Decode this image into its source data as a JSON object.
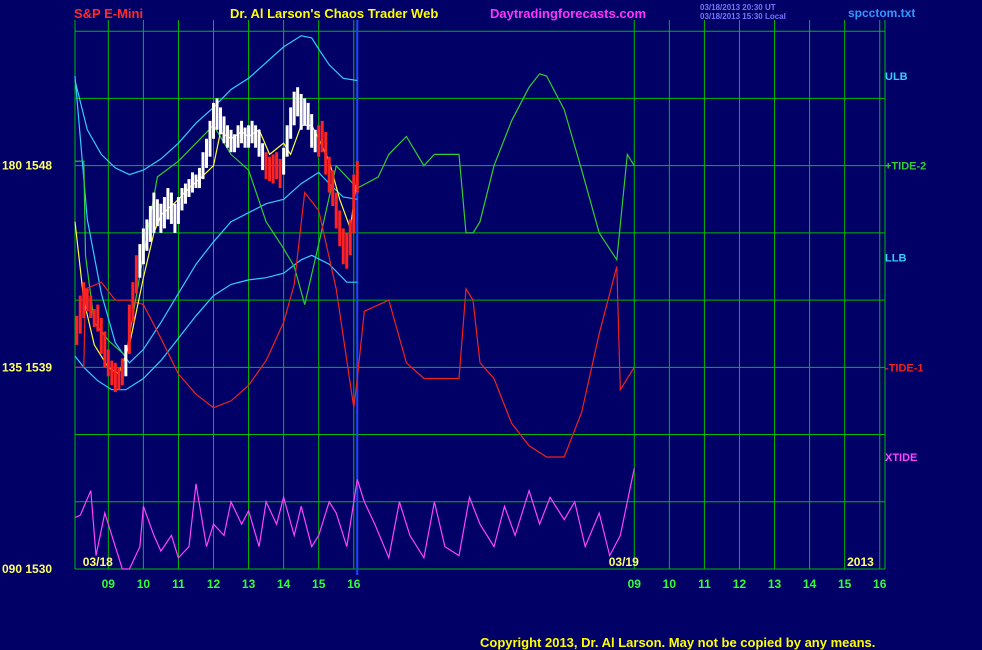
{
  "header": {
    "symbol": "S&P E-Mini",
    "title": "Dr. Al Larson's Chaos Trader Web",
    "website": "Daytradingforecasts.com",
    "timestamp_line1": "03/18/2013 20:30 UT",
    "timestamp_line2": "03/18/2013 15:30 Local",
    "filename": "spcctom.txt"
  },
  "copyright": "Copyright 2013, Dr. Al Larson. May not be copied by any means.",
  "colors": {
    "background": "#000066",
    "grid": "#00bb00",
    "symbol": "#ff2a2a",
    "title": "#ffff00",
    "website": "#ff33ff",
    "timestamp": "#7777ff",
    "filename": "#3399ff",
    "band": "#33ccff",
    "tide2": "#33cc33",
    "tide1": "#ee2222",
    "xtide": "#ff44ff",
    "yline": "#ffff33",
    "candle_up": "#ffffff",
    "candle_down": "#ff2222",
    "axis_text": "#ffff66",
    "x_ticks": "#33ff33",
    "divider": "#2244ff"
  },
  "chart_data": {
    "type": "line",
    "ylim": [
      1530,
      1554.5
    ],
    "xlim": [
      8.05,
      8.17
    ],
    "y_tick_labels": [
      {
        "label": "180  1548",
        "value": 1548
      },
      {
        "label": "135  1539",
        "value": 1539
      },
      {
        "label": "090  1530",
        "value": 1530
      }
    ],
    "x_ticks": {
      "labels": [
        "09",
        "10",
        "11",
        "12",
        "13",
        "14",
        "15",
        "16",
        "09",
        "10",
        "11",
        "12",
        "13",
        "14",
        "15",
        "16"
      ],
      "values": [
        9,
        10,
        11,
        12,
        13,
        14,
        15,
        16,
        24,
        25,
        26,
        27,
        28,
        29,
        30,
        31
      ],
      "range": [
        8.05,
        31.15
      ]
    },
    "date_labels": [
      {
        "label": "03/18",
        "x": 8.7
      },
      {
        "label": "03/19",
        "x": 23.7
      },
      {
        "label": "2013",
        "x": 30.45
      }
    ],
    "divider_x": 16.1,
    "series_labels": [
      {
        "label": "ULB",
        "y": 1552.0,
        "key": "band"
      },
      {
        "label": "+TIDE-2",
        "y": 1548.0,
        "key": "tide2"
      },
      {
        "label": "LLB",
        "y": 1543.9,
        "key": "band"
      },
      {
        "label": "-TIDE-1",
        "y": 1539.0,
        "key": "tide1"
      },
      {
        "label": "XTIDE",
        "y": 1535.0,
        "key": "xtide"
      }
    ],
    "series": [
      {
        "name": "ULB",
        "key": "band",
        "x": [
          8.05,
          8.4,
          8.8,
          9.2,
          9.6,
          10.0,
          10.5,
          11.0,
          11.5,
          12.0,
          12.5,
          13.0,
          13.5,
          14.0,
          14.5,
          14.8,
          15.0,
          15.3,
          15.7,
          16.1
        ],
        "y": [
          1551.8,
          1549.6,
          1548.5,
          1547.9,
          1547.6,
          1547.8,
          1548.3,
          1549.0,
          1549.9,
          1550.6,
          1551.4,
          1551.9,
          1552.6,
          1553.3,
          1553.8,
          1553.7,
          1553.2,
          1552.5,
          1551.9,
          1551.8
        ]
      },
      {
        "name": "MLB",
        "key": "band",
        "x": [
          8.05,
          8.4,
          8.8,
          9.2,
          9.6,
          10.0,
          10.5,
          11.0,
          11.5,
          12.0,
          12.5,
          13.0,
          13.5,
          14.0,
          14.5,
          15.0,
          15.3,
          15.7,
          16.1
        ],
        "y": [
          1552.0,
          1545.6,
          1542.3,
          1540.1,
          1539.2,
          1539.8,
          1541.0,
          1542.3,
          1543.6,
          1544.6,
          1545.5,
          1545.9,
          1546.3,
          1546.5,
          1547.2,
          1547.7,
          1547.2,
          1546.6,
          1546.5
        ]
      },
      {
        "name": "LLB",
        "key": "band",
        "x": [
          8.05,
          8.3,
          8.7,
          9.1,
          9.5,
          10.0,
          10.5,
          11.0,
          11.5,
          12.0,
          12.5,
          13.0,
          13.5,
          14.0,
          14.5,
          14.8,
          15.3,
          15.8,
          16.1
        ],
        "y": [
          1539.5,
          1539.0,
          1538.4,
          1538.0,
          1538.0,
          1538.5,
          1539.3,
          1540.3,
          1541.3,
          1542.2,
          1542.7,
          1542.9,
          1543.0,
          1543.2,
          1543.8,
          1544.0,
          1543.6,
          1542.8,
          1542.8
        ]
      },
      {
        "name": "+TIDE-2",
        "key": "tide2",
        "x": [
          8.05,
          8.3,
          8.35,
          8.6,
          9.0,
          9.5,
          10.0,
          10.4,
          11.0,
          11.5,
          12.0,
          12.5,
          13.0,
          13.5,
          14.0,
          14.3,
          14.6,
          15.0,
          15.5,
          16.1,
          16.7,
          17.0,
          17.5,
          18.0,
          18.3,
          18.6,
          19.0,
          19.2,
          19.4,
          19.6,
          20.0,
          20.5,
          21.0,
          21.3,
          21.5,
          22.0,
          22.5,
          23.0,
          23.5,
          23.8,
          24.0
        ],
        "y": [
          1548.2,
          1548.2,
          1544.0,
          1541.0,
          1540.2,
          1539.5,
          1544.0,
          1547.5,
          1548.2,
          1549.0,
          1549.8,
          1548.5,
          1547.8,
          1545.5,
          1544.3,
          1543.5,
          1541.8,
          1544.5,
          1548.0,
          1547.0,
          1547.5,
          1548.5,
          1549.3,
          1548.0,
          1548.5,
          1548.5,
          1548.5,
          1545.0,
          1545.0,
          1545.5,
          1548.0,
          1550.0,
          1551.5,
          1552.1,
          1552.0,
          1550.5,
          1547.8,
          1545.0,
          1543.8,
          1548.5,
          1548.0
        ]
      },
      {
        "name": "-TIDE-1",
        "key": "tide1",
        "x": [
          8.05,
          8.3,
          8.35,
          8.8,
          9.2,
          9.6,
          10.0,
          10.5,
          11.0,
          11.5,
          12.0,
          12.5,
          13.0,
          13.5,
          14.0,
          14.3,
          14.6,
          15.0,
          15.5,
          16.0,
          16.1,
          16.3,
          17.0,
          17.5,
          18.0,
          18.5,
          19.0,
          19.2,
          19.4,
          19.6,
          20.0,
          20.5,
          21.0,
          21.5,
          22.0,
          22.5,
          23.0,
          23.5,
          23.6,
          24.0
        ],
        "y": [
          1539.0,
          1539.0,
          1542.5,
          1542.8,
          1542.0,
          1542.0,
          1541.8,
          1540.3,
          1538.7,
          1537.8,
          1537.2,
          1537.5,
          1538.2,
          1539.3,
          1541.0,
          1542.7,
          1546.8,
          1546.0,
          1542.5,
          1537.2,
          1538.5,
          1541.5,
          1542.0,
          1539.2,
          1538.5,
          1538.5,
          1538.5,
          1542.5,
          1542.0,
          1539.2,
          1538.5,
          1536.5,
          1535.5,
          1535.0,
          1535.0,
          1537.0,
          1540.5,
          1543.5,
          1538.0,
          1539.0
        ]
      },
      {
        "name": "XTIDE",
        "key": "xtide",
        "x": [
          8.05,
          8.2,
          8.5,
          8.65,
          8.9,
          9.2,
          9.4,
          9.6,
          9.9,
          10.0,
          10.3,
          10.5,
          10.8,
          11.0,
          11.3,
          11.5,
          11.8,
          12.0,
          12.3,
          12.5,
          12.8,
          13.0,
          13.3,
          13.5,
          13.8,
          14.0,
          14.3,
          14.5,
          14.8,
          15.0,
          15.3,
          15.5,
          15.8,
          16.1,
          16.3,
          16.6,
          17.0,
          17.3,
          17.6,
          18.0,
          18.3,
          18.6,
          19.0,
          19.3,
          19.6,
          20.0,
          20.3,
          20.6,
          21.0,
          21.3,
          21.6,
          22.0,
          22.3,
          22.6,
          23.0,
          23.3,
          23.6,
          24.0
        ],
        "y": [
          1532.3,
          1532.4,
          1533.5,
          1530.6,
          1532.5,
          1531.0,
          1530.0,
          1530.0,
          1531.0,
          1532.8,
          1531.5,
          1530.8,
          1531.5,
          1530.5,
          1531.0,
          1533.8,
          1531.0,
          1532.0,
          1531.5,
          1533.0,
          1532.0,
          1532.6,
          1531.0,
          1533.0,
          1532.0,
          1533.2,
          1531.5,
          1532.8,
          1531.0,
          1531.5,
          1533.0,
          1532.5,
          1531.0,
          1534.0,
          1533.0,
          1532.0,
          1530.5,
          1533.0,
          1531.5,
          1530.5,
          1533.0,
          1531.0,
          1530.6,
          1533.2,
          1532.0,
          1531.0,
          1532.8,
          1531.5,
          1533.5,
          1532.0,
          1533.2,
          1532.2,
          1533.0,
          1531.0,
          1532.5,
          1530.6,
          1531.5,
          1534.5
        ]
      },
      {
        "name": "",
        "key": "yline",
        "x": [
          8.05,
          8.3,
          8.6,
          9.0,
          9.3,
          9.6,
          10.0,
          10.3,
          10.5,
          10.8,
          11.0,
          11.3,
          11.6,
          12.0,
          12.2,
          12.5,
          12.8,
          13.0,
          13.3,
          13.6,
          14.0,
          14.2,
          14.5,
          14.8,
          15.0,
          15.3,
          15.6,
          15.9,
          16.1
        ],
        "y": [
          1545.5,
          1542.0,
          1540.0,
          1539.0,
          1538.7,
          1540.0,
          1543.0,
          1545.0,
          1545.8,
          1546.2,
          1546.5,
          1547.0,
          1547.4,
          1548.0,
          1549.5,
          1549.2,
          1549.5,
          1549.3,
          1549.6,
          1548.5,
          1549.0,
          1548.5,
          1549.8,
          1549.8,
          1549.2,
          1548.2,
          1546.5,
          1545.2,
          1547.5
        ]
      }
    ],
    "price_bars": [
      {
        "x": 8.1,
        "h": 1541.3,
        "l": 1540.0,
        "dir": "down"
      },
      {
        "x": 8.2,
        "h": 1542.2,
        "l": 1540.5,
        "dir": "down"
      },
      {
        "x": 8.3,
        "h": 1542.8,
        "l": 1541.2,
        "dir": "down"
      },
      {
        "x": 8.4,
        "h": 1542.5,
        "l": 1541.5,
        "dir": "down"
      },
      {
        "x": 8.5,
        "h": 1542.2,
        "l": 1541.2,
        "dir": "down"
      },
      {
        "x": 8.6,
        "h": 1541.6,
        "l": 1540.8,
        "dir": "down"
      },
      {
        "x": 8.7,
        "h": 1541.8,
        "l": 1540.6,
        "dir": "down"
      },
      {
        "x": 8.8,
        "h": 1541.2,
        "l": 1539.6,
        "dir": "down"
      },
      {
        "x": 8.9,
        "h": 1540.6,
        "l": 1539.0,
        "dir": "down"
      },
      {
        "x": 9.0,
        "h": 1539.8,
        "l": 1538.6,
        "dir": "down"
      },
      {
        "x": 9.1,
        "h": 1539.3,
        "l": 1538.2,
        "dir": "down"
      },
      {
        "x": 9.2,
        "h": 1539.2,
        "l": 1537.9,
        "dir": "down"
      },
      {
        "x": 9.3,
        "h": 1539.0,
        "l": 1538.0,
        "dir": "down"
      },
      {
        "x": 9.4,
        "h": 1539.4,
        "l": 1538.2,
        "dir": "down"
      },
      {
        "x": 9.5,
        "h": 1540.0,
        "l": 1538.6,
        "dir": "up"
      },
      {
        "x": 9.6,
        "h": 1541.8,
        "l": 1539.6,
        "dir": "down"
      },
      {
        "x": 9.7,
        "h": 1542.8,
        "l": 1541.0,
        "dir": "down"
      },
      {
        "x": 9.8,
        "h": 1544.0,
        "l": 1542.3,
        "dir": "down"
      },
      {
        "x": 9.9,
        "h": 1544.5,
        "l": 1543.0,
        "dir": "up"
      },
      {
        "x": 10.0,
        "h": 1545.2,
        "l": 1543.6,
        "dir": "up"
      },
      {
        "x": 10.1,
        "h": 1545.6,
        "l": 1544.2,
        "dir": "up"
      },
      {
        "x": 10.2,
        "h": 1546.2,
        "l": 1544.6,
        "dir": "up"
      },
      {
        "x": 10.3,
        "h": 1546.8,
        "l": 1545.0,
        "dir": "up"
      },
      {
        "x": 10.4,
        "h": 1546.5,
        "l": 1545.3,
        "dir": "up"
      },
      {
        "x": 10.5,
        "h": 1546.3,
        "l": 1545.0,
        "dir": "up"
      },
      {
        "x": 10.6,
        "h": 1546.6,
        "l": 1545.2,
        "dir": "up"
      },
      {
        "x": 10.7,
        "h": 1547.0,
        "l": 1545.6,
        "dir": "up"
      },
      {
        "x": 10.8,
        "h": 1546.8,
        "l": 1545.4,
        "dir": "up"
      },
      {
        "x": 10.9,
        "h": 1546.3,
        "l": 1545.0,
        "dir": "up"
      },
      {
        "x": 11.0,
        "h": 1546.6,
        "l": 1545.4,
        "dir": "up"
      },
      {
        "x": 11.1,
        "h": 1547.0,
        "l": 1546.0,
        "dir": "up"
      },
      {
        "x": 11.2,
        "h": 1547.2,
        "l": 1546.3,
        "dir": "up"
      },
      {
        "x": 11.3,
        "h": 1547.4,
        "l": 1546.6,
        "dir": "up"
      },
      {
        "x": 11.4,
        "h": 1547.7,
        "l": 1546.8,
        "dir": "up"
      },
      {
        "x": 11.5,
        "h": 1547.6,
        "l": 1547.0,
        "dir": "up"
      },
      {
        "x": 11.6,
        "h": 1547.9,
        "l": 1547.0,
        "dir": "up"
      },
      {
        "x": 11.7,
        "h": 1548.6,
        "l": 1547.4,
        "dir": "up"
      },
      {
        "x": 11.8,
        "h": 1549.2,
        "l": 1547.9,
        "dir": "up"
      },
      {
        "x": 11.9,
        "h": 1550.0,
        "l": 1548.4,
        "dir": "up"
      },
      {
        "x": 12.0,
        "h": 1550.8,
        "l": 1549.2,
        "dir": "up"
      },
      {
        "x": 12.1,
        "h": 1551.0,
        "l": 1549.6,
        "dir": "up"
      },
      {
        "x": 12.2,
        "h": 1550.6,
        "l": 1549.4,
        "dir": "up"
      },
      {
        "x": 12.3,
        "h": 1550.2,
        "l": 1549.0,
        "dir": "up"
      },
      {
        "x": 12.4,
        "h": 1549.8,
        "l": 1548.8,
        "dir": "up"
      },
      {
        "x": 12.5,
        "h": 1549.6,
        "l": 1548.6,
        "dir": "up"
      },
      {
        "x": 12.6,
        "h": 1549.4,
        "l": 1548.6,
        "dir": "up"
      },
      {
        "x": 12.7,
        "h": 1549.8,
        "l": 1548.8,
        "dir": "up"
      },
      {
        "x": 12.8,
        "h": 1550.0,
        "l": 1549.0,
        "dir": "up"
      },
      {
        "x": 12.9,
        "h": 1549.7,
        "l": 1548.8,
        "dir": "up"
      },
      {
        "x": 13.0,
        "h": 1549.8,
        "l": 1548.8,
        "dir": "up"
      },
      {
        "x": 13.1,
        "h": 1550.0,
        "l": 1549.0,
        "dir": "up"
      },
      {
        "x": 13.2,
        "h": 1549.8,
        "l": 1548.8,
        "dir": "up"
      },
      {
        "x": 13.3,
        "h": 1549.6,
        "l": 1548.4,
        "dir": "up"
      },
      {
        "x": 13.4,
        "h": 1549.0,
        "l": 1547.8,
        "dir": "up"
      },
      {
        "x": 13.5,
        "h": 1548.6,
        "l": 1547.4,
        "dir": "down"
      },
      {
        "x": 13.6,
        "h": 1548.4,
        "l": 1547.3,
        "dir": "down"
      },
      {
        "x": 13.7,
        "h": 1548.5,
        "l": 1547.2,
        "dir": "down"
      },
      {
        "x": 13.8,
        "h": 1548.6,
        "l": 1547.4,
        "dir": "down"
      },
      {
        "x": 13.9,
        "h": 1548.3,
        "l": 1547.0,
        "dir": "down"
      },
      {
        "x": 14.0,
        "h": 1548.8,
        "l": 1547.6,
        "dir": "up"
      },
      {
        "x": 14.1,
        "h": 1549.8,
        "l": 1548.4,
        "dir": "up"
      },
      {
        "x": 14.2,
        "h": 1550.6,
        "l": 1549.2,
        "dir": "up"
      },
      {
        "x": 14.3,
        "h": 1551.3,
        "l": 1549.8,
        "dir": "up"
      },
      {
        "x": 14.4,
        "h": 1551.5,
        "l": 1550.2,
        "dir": "up"
      },
      {
        "x": 14.5,
        "h": 1551.2,
        "l": 1549.6,
        "dir": "up"
      },
      {
        "x": 14.6,
        "h": 1551.0,
        "l": 1549.8,
        "dir": "up"
      },
      {
        "x": 14.7,
        "h": 1550.8,
        "l": 1549.6,
        "dir": "up"
      },
      {
        "x": 14.8,
        "h": 1550.3,
        "l": 1548.8,
        "dir": "up"
      },
      {
        "x": 14.9,
        "h": 1549.6,
        "l": 1548.6,
        "dir": "up"
      },
      {
        "x": 15.0,
        "h": 1549.8,
        "l": 1548.4,
        "dir": "down"
      },
      {
        "x": 15.1,
        "h": 1550.0,
        "l": 1548.6,
        "dir": "down"
      },
      {
        "x": 15.2,
        "h": 1549.5,
        "l": 1547.6,
        "dir": "down"
      },
      {
        "x": 15.3,
        "h": 1548.4,
        "l": 1546.8,
        "dir": "down"
      },
      {
        "x": 15.4,
        "h": 1547.8,
        "l": 1546.2,
        "dir": "down"
      },
      {
        "x": 15.5,
        "h": 1546.8,
        "l": 1545.2,
        "dir": "down"
      },
      {
        "x": 15.6,
        "h": 1546.0,
        "l": 1544.4,
        "dir": "down"
      },
      {
        "x": 15.7,
        "h": 1545.2,
        "l": 1543.6,
        "dir": "down"
      },
      {
        "x": 15.8,
        "h": 1545.0,
        "l": 1543.4,
        "dir": "down"
      },
      {
        "x": 15.9,
        "h": 1545.6,
        "l": 1544.0,
        "dir": "down"
      },
      {
        "x": 16.0,
        "h": 1547.6,
        "l": 1545.0,
        "dir": "down"
      },
      {
        "x": 16.1,
        "h": 1548.2,
        "l": 1546.8,
        "dir": "down"
      }
    ]
  }
}
